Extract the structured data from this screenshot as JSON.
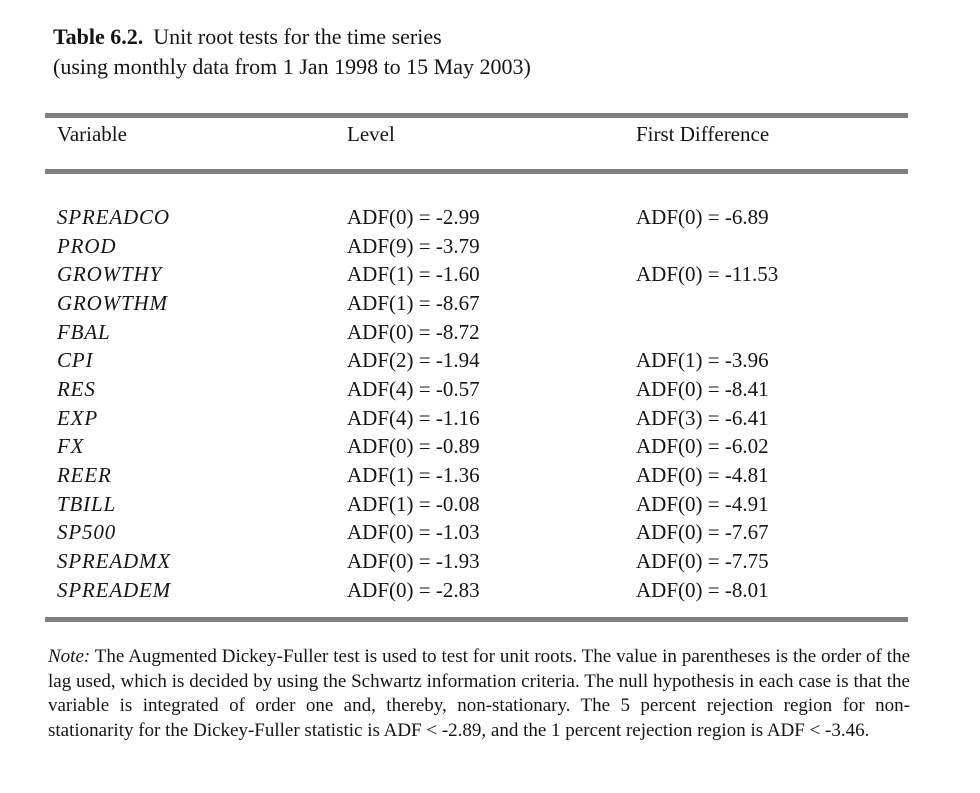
{
  "title": {
    "label": "Table 6.2.",
    "text": "Unit root tests for the time series",
    "subtitle": "(using monthly data from 1 Jan 1998 to 15 May 2003)"
  },
  "table": {
    "columns": [
      "Variable",
      "Level",
      "First Difference"
    ],
    "rows": [
      {
        "variable": "SPREADCO",
        "level": "ADF(0) = -2.99",
        "first_difference": "ADF(0) = -6.89"
      },
      {
        "variable": "PROD",
        "level": "ADF(9) = -3.79",
        "first_difference": ""
      },
      {
        "variable": "GROWTHY",
        "level": "ADF(1) = -1.60",
        "first_difference": "ADF(0) = -11.53"
      },
      {
        "variable": "GROWTHM",
        "level": "ADF(1) = -8.67",
        "first_difference": ""
      },
      {
        "variable": "FBAL",
        "level": "ADF(0) = -8.72",
        "first_difference": ""
      },
      {
        "variable": "CPI",
        "level": "ADF(2) = -1.94",
        "first_difference": "ADF(1) = -3.96"
      },
      {
        "variable": "RES",
        "level": "ADF(4) = -0.57",
        "first_difference": "ADF(0) = -8.41"
      },
      {
        "variable": "EXP",
        "level": "ADF(4) = -1.16",
        "first_difference": "ADF(3) = -6.41"
      },
      {
        "variable": "FX",
        "level": "ADF(0) = -0.89",
        "first_difference": "ADF(0) = -6.02"
      },
      {
        "variable": "REER",
        "level": "ADF(1) = -1.36",
        "first_difference": "ADF(0) = -4.81"
      },
      {
        "variable": "TBILL",
        "level": "ADF(1) = -0.08",
        "first_difference": "ADF(0) = -4.91"
      },
      {
        "variable": "SP500",
        "level": "ADF(0) = -1.03",
        "first_difference": "ADF(0) = -7.67"
      },
      {
        "variable": "SPREADMX",
        "level": "ADF(0) = -1.93",
        "first_difference": "ADF(0) = -7.75"
      },
      {
        "variable": "SPREADEM",
        "level": "ADF(0) = -2.83",
        "first_difference": "ADF(0) = -8.01"
      }
    ]
  },
  "note": {
    "label": "Note:",
    "text": "The Augmented Dickey-Fuller test is used to test for unit roots.  The value in parentheses is the order of the lag used, which is decided by using the Schwartz information criteria.  The null hypothesis in each case is that the variable is integrated of order one and, thereby, non-stationary.  The 5 percent rejection region for non-stationarity for the Dickey-Fuller statistic is ADF < -2.89, and the 1 percent rejection region is ADF < -3.46."
  },
  "colors": {
    "rule_gray": "#808080",
    "text": "#151515",
    "background": "#ffffff"
  }
}
